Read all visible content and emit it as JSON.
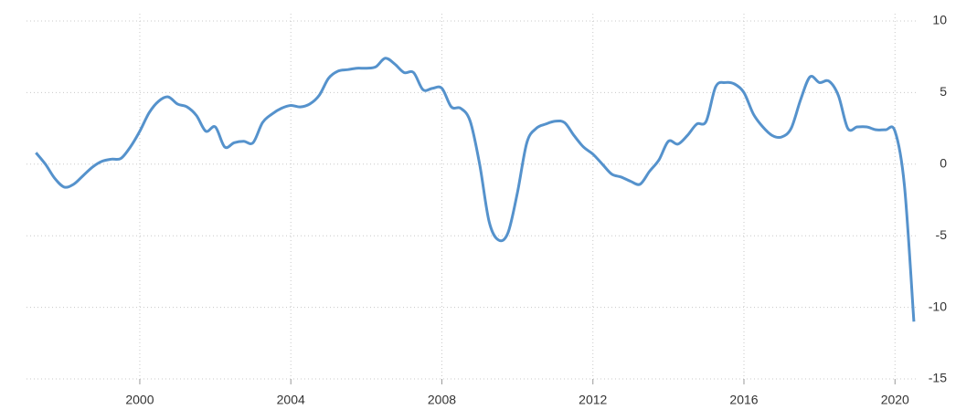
{
  "chart_data": {
    "type": "line",
    "x": [
      1997.25,
      1997.5,
      1997.75,
      1998,
      1998.25,
      1998.5,
      1998.75,
      1999,
      1999.25,
      1999.5,
      1999.75,
      2000,
      2000.25,
      2000.5,
      2000.75,
      2001,
      2001.25,
      2001.5,
      2001.75,
      2002,
      2002.25,
      2002.5,
      2002.75,
      2003,
      2003.25,
      2003.5,
      2003.75,
      2004,
      2004.25,
      2004.5,
      2004.75,
      2005,
      2005.25,
      2005.5,
      2005.75,
      2006,
      2006.25,
      2006.5,
      2006.75,
      2007,
      2007.25,
      2007.5,
      2007.75,
      2008,
      2008.25,
      2008.5,
      2008.75,
      2009,
      2009.25,
      2009.5,
      2009.75,
      2010,
      2010.25,
      2010.5,
      2010.75,
      2011,
      2011.25,
      2011.5,
      2011.75,
      2012,
      2012.25,
      2012.5,
      2012.75,
      2013,
      2013.25,
      2013.5,
      2013.75,
      2014,
      2014.25,
      2014.5,
      2014.75,
      2015,
      2015.25,
      2015.5,
      2015.75,
      2016,
      2016.25,
      2016.5,
      2016.75,
      2017,
      2017.25,
      2017.5,
      2017.75,
      2018,
      2018.25,
      2018.5,
      2018.75,
      2019,
      2019.25,
      2019.5,
      2019.75,
      2020,
      2020.25,
      2020.5
    ],
    "series": [
      {
        "color": "#5592cc",
        "values": [
          0.8,
          0,
          -1.0,
          -1.6,
          -1.4,
          -0.8,
          -0.2,
          0.2,
          0.35,
          0.4,
          1.2,
          2.3,
          3.6,
          4.4,
          4.7,
          4.2,
          4.0,
          3.4,
          2.3,
          2.6,
          1.2,
          1.5,
          1.6,
          1.5,
          2.9,
          3.5,
          3.9,
          4.1,
          4.0,
          4.2,
          4.8,
          6.0,
          6.5,
          6.6,
          6.7,
          6.7,
          6.8,
          7.4,
          7.0,
          6.4,
          6.4,
          5.2,
          5.3,
          5.3,
          4.0,
          3.9,
          3.0,
          0.0,
          -4.0,
          -5.3,
          -4.8,
          -2.0,
          1.5,
          2.5,
          2.8,
          3.0,
          2.9,
          2.0,
          1.2,
          0.7,
          0.0,
          -0.7,
          -0.9,
          -1.2,
          -1.4,
          -0.5,
          0.3,
          1.6,
          1.4,
          2.0,
          2.8,
          3.0,
          5.4,
          5.7,
          5.6,
          5.0,
          3.5,
          2.6,
          2.0,
          1.9,
          2.5,
          4.5,
          6.1,
          5.7,
          5.8,
          4.8,
          2.5,
          2.6,
          2.6,
          2.4,
          2.4,
          2.3,
          -1.5,
          -11.0
        ]
      }
    ],
    "xlim": [
      1997,
      2020.55
    ],
    "xticks": [
      2000,
      2004,
      2008,
      2012,
      2016,
      2020
    ],
    "ylim": [
      -15,
      10
    ],
    "yticks": [
      -15,
      -10,
      -5,
      0,
      5,
      10
    ],
    "grid": true
  }
}
